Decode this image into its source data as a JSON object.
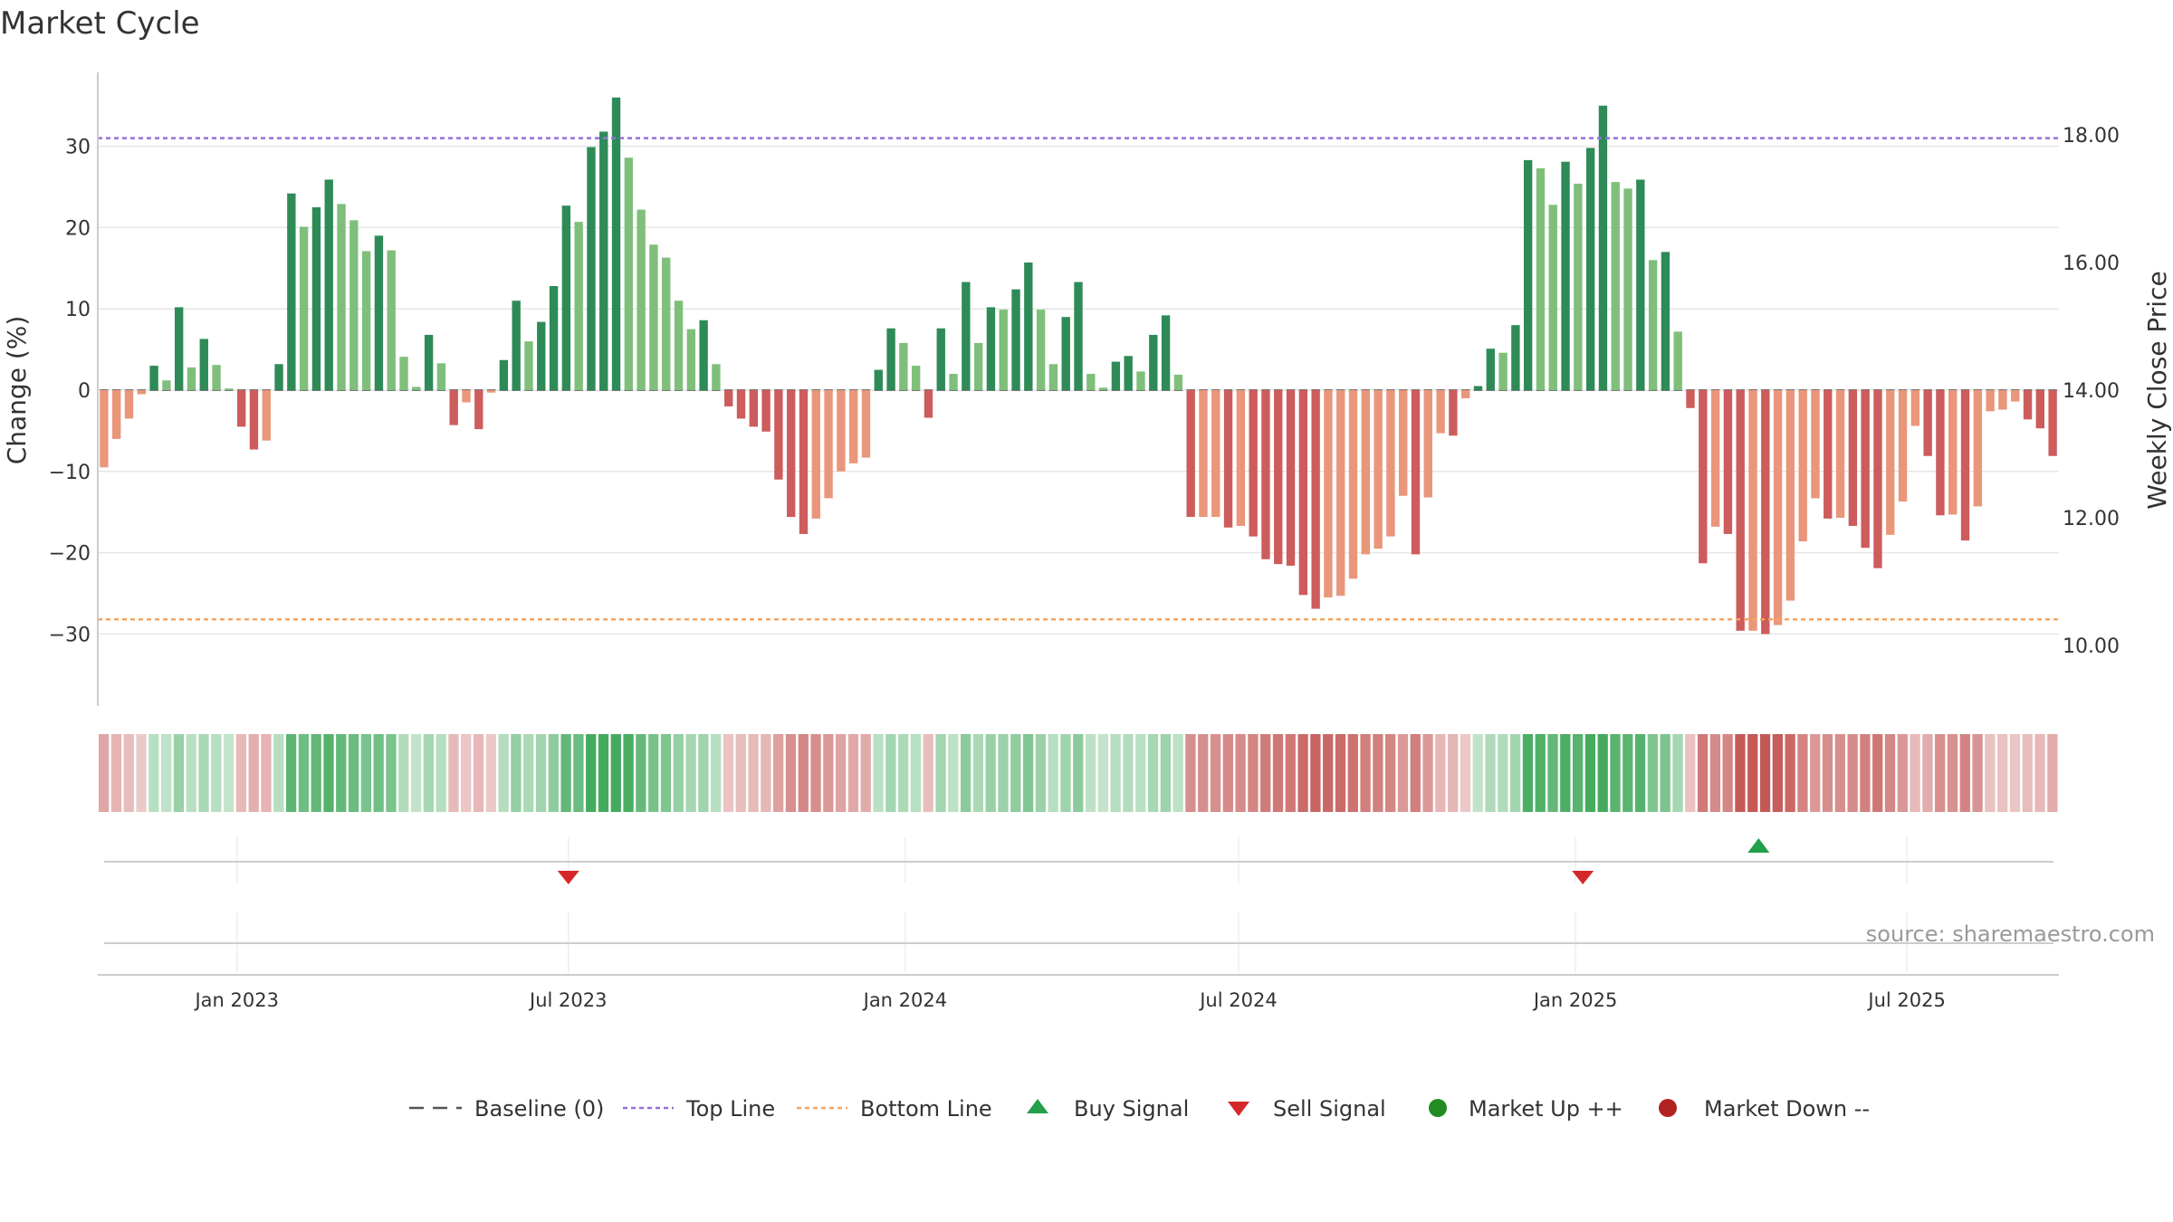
{
  "colors": {
    "up_strong": "#2e8b57",
    "up_light": "#7fbf7b",
    "down_strong": "#cd5c5c",
    "down_light": "#e9967a",
    "top_line": "#9370db",
    "bottom_line": "#f4a460",
    "buy": "#22a04a",
    "sell": "#d62728",
    "market_up": "#228b22",
    "market_down": "#b22222",
    "baseline": "#555555"
  },
  "chart_data": {
    "type": "bar",
    "title": "Market Cycle",
    "ylabel": "Change (%)",
    "y2label": "Weekly Close Price",
    "ylim": [
      -39,
      39
    ],
    "yticks": [
      30,
      20,
      10,
      0,
      -10,
      -20,
      -30
    ],
    "ytick_labels": [
      "30",
      "20",
      "10",
      "0",
      "−10",
      "−20",
      "−30"
    ],
    "y2lim": [
      9.2,
      18.8
    ],
    "y2ticks": [
      18,
      16,
      14,
      12,
      10
    ],
    "y2tick_labels": [
      "18.00",
      "16.00",
      "14.00",
      "12.00",
      "10.00"
    ],
    "top_line": 31,
    "bottom_line": -28.2,
    "date_range": [
      "2022-10-17",
      "2025-09-22"
    ],
    "xticks": [
      {
        "date": "2023-01-01",
        "label": "Jan 2023"
      },
      {
        "date": "2023-07-01",
        "label": "Jul 2023"
      },
      {
        "date": "2024-01-01",
        "label": "Jan 2024"
      },
      {
        "date": "2024-07-01",
        "label": "Jul 2024"
      },
      {
        "date": "2025-01-01",
        "label": "Jan 2025"
      },
      {
        "date": "2025-07-01",
        "label": "Jul 2025"
      }
    ],
    "values": [
      -9.5,
      -6,
      -3.5,
      -0.5,
      3,
      1.2,
      10.2,
      2.8,
      6.3,
      3.1,
      0.2,
      -4.5,
      -7.3,
      -6.2,
      3.2,
      24.2,
      20.1,
      22.5,
      25.9,
      22.9,
      20.9,
      17.1,
      19,
      17.2,
      4.1,
      0.4,
      6.8,
      3.3,
      -4.3,
      -1.5,
      -4.8,
      -0.3,
      3.7,
      11,
      6,
      8.4,
      12.8,
      22.7,
      20.7,
      29.9,
      31.8,
      36,
      28.6,
      22.2,
      17.9,
      16.3,
      11,
      7.5,
      8.6,
      3.2,
      -2,
      -3.5,
      -4.5,
      -5.1,
      -11,
      -15.6,
      -17.7,
      -15.8,
      -13.3,
      -10,
      -9,
      -8.3,
      2.5,
      7.6,
      5.8,
      3,
      -3.4,
      7.6,
      2,
      13.3,
      5.8,
      10.2,
      9.9,
      12.4,
      15.7,
      9.9,
      3.2,
      9,
      13.3,
      2,
      0.3,
      3.5,
      4.2,
      2.3,
      6.8,
      9.2,
      1.9,
      -15.6,
      -15.6,
      -15.6,
      -16.9,
      -16.7,
      -18,
      -20.8,
      -21.4,
      -21.6,
      -25.2,
      -26.9,
      -25.5,
      -25.3,
      -23.2,
      -20.2,
      -19.5,
      -18,
      -13,
      -20.2,
      -13.2,
      -5.3,
      -5.6,
      -1,
      0.5,
      5.1,
      4.6,
      8,
      28.3,
      27.3,
      22.8,
      28.1,
      25.4,
      29.8,
      35,
      25.6,
      24.8,
      25.9,
      16,
      17,
      7.2,
      -2.2,
      -21.3,
      -16.8,
      -17.7,
      -29.6,
      -29.6,
      -30,
      -28.9,
      -25.9,
      -18.6,
      -13.3,
      -15.8,
      -15.7,
      -16.7,
      -19.4,
      -21.9,
      -17.8,
      -13.7,
      -4.4,
      -8.1,
      -15.4,
      -15.3,
      -18.5,
      -14.3,
      -2.6,
      -2.4,
      -1.4,
      -3.6,
      -4.7,
      -8.1
    ],
    "signals": [
      {
        "type": "sell",
        "date": "2023-07-01",
        "label": "Sell Signal"
      },
      {
        "type": "sell",
        "date": "2025-01-05",
        "label": "Sell Signal"
      },
      {
        "type": "buy",
        "date": "2025-04-11",
        "label": "Buy Signal"
      }
    ],
    "legend": [
      {
        "key": "baseline",
        "label": "Baseline (0)"
      },
      {
        "key": "top",
        "label": "Top Line"
      },
      {
        "key": "bottom",
        "label": "Bottom Line"
      },
      {
        "key": "buy",
        "label": "Buy Signal"
      },
      {
        "key": "sell",
        "label": "Sell Signal"
      },
      {
        "key": "up",
        "label": "Market Up ++"
      },
      {
        "key": "down",
        "label": "Market Down --"
      }
    ],
    "legend_placement": "bottom-center",
    "source": "source: sharemaestro.com"
  }
}
